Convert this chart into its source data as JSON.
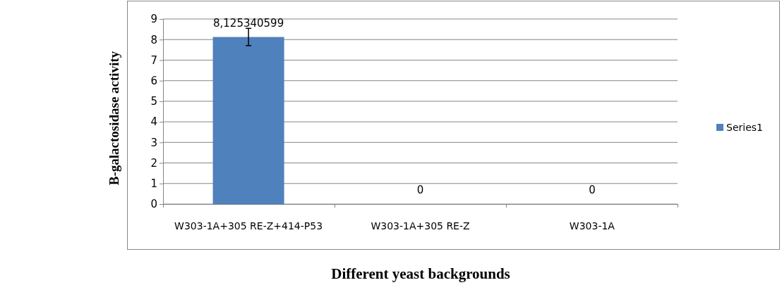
{
  "chart_data": {
    "type": "bar",
    "xlabel": "Different yeast backgrounds",
    "ylabel": "B-galactosidase activity",
    "categories": [
      "W303-1A+305 RE-Z+414-P53",
      "W303-1A+305 RE-Z",
      "W303-1A"
    ],
    "series": [
      {
        "name": "Series1",
        "color": "#4f81bd",
        "values": [
          8.125340599,
          0,
          0
        ],
        "errors": [
          0.42,
          null,
          null
        ],
        "value_labels": [
          "8,125340599",
          "0",
          "0"
        ]
      }
    ],
    "ylim": [
      0,
      9
    ],
    "yticks": [
      0,
      1,
      2,
      3,
      4,
      5,
      6,
      7,
      8,
      9
    ],
    "grid": "y",
    "legend": "right"
  }
}
